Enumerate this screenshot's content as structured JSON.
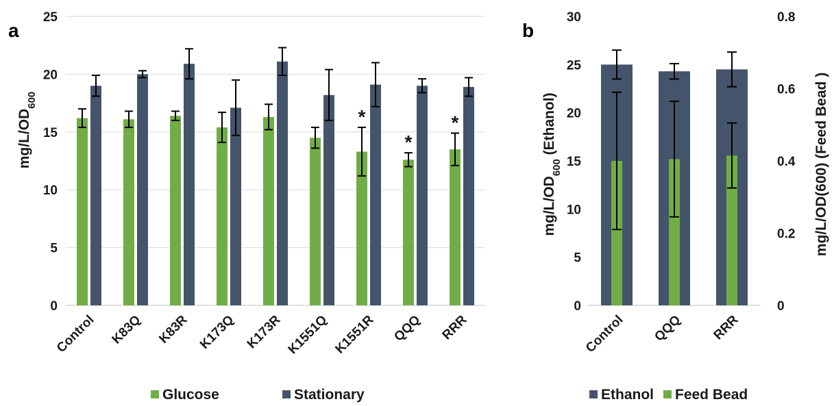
{
  "colors": {
    "glucose": "#70ad47",
    "stationary": "#44546a",
    "ethanol": "#44546a",
    "feed_bead": "#70ad47",
    "axis": "#d9d9d9",
    "error": "#000000"
  },
  "chart_data": [
    {
      "panel_label": "a",
      "type": "bar",
      "categories": [
        "Control",
        "K83Q",
        "K83R",
        "K173Q",
        "K173R",
        "K1551Q",
        "K1551R",
        "QQQ",
        "RRR"
      ],
      "series": [
        {
          "name": "Glucose",
          "values": [
            16.2,
            16.1,
            16.4,
            15.4,
            16.3,
            14.5,
            13.3,
            12.6,
            13.5
          ],
          "errors": [
            0.8,
            0.7,
            0.4,
            1.3,
            1.1,
            0.9,
            2.1,
            0.6,
            1.4
          ]
        },
        {
          "name": "Stationary",
          "values": [
            19.0,
            20.0,
            20.9,
            17.1,
            21.1,
            18.2,
            19.1,
            19.0,
            18.9
          ],
          "errors": [
            0.9,
            0.3,
            1.3,
            2.4,
            1.2,
            2.2,
            1.9,
            0.6,
            0.8
          ]
        }
      ],
      "significance_marks": [
        {
          "category": "K1551R",
          "label": "*"
        },
        {
          "category": "QQQ",
          "label": "*"
        },
        {
          "category": "RRR",
          "label": "*"
        }
      ],
      "ylim": [
        0,
        25
      ],
      "yticks": [
        "0",
        "5",
        "10",
        "15",
        "20",
        "25"
      ],
      "ylabel": {
        "main": "mg/L/OD",
        "sub": "600"
      },
      "legend_position": "bottom"
    },
    {
      "panel_label": "b",
      "type": "bar",
      "categories": [
        "Control",
        "QQQ",
        "RRR"
      ],
      "series": [
        {
          "name": "Ethanol",
          "axis": "left",
          "values": [
            25.0,
            24.3,
            24.5
          ],
          "errors": [
            1.5,
            0.8,
            1.8
          ]
        },
        {
          "name": "Feed Bead",
          "axis": "right",
          "values": [
            0.4,
            0.405,
            0.415
          ],
          "errors": [
            0.19,
            0.16,
            0.09
          ]
        }
      ],
      "ylim_left": [
        0,
        30
      ],
      "yticks_left": [
        "0",
        "5",
        "10",
        "15",
        "20",
        "25",
        "30"
      ],
      "ylim_right": [
        0,
        0.8
      ],
      "yticks_right": [
        "0",
        "0.2",
        "0.4",
        "0.6",
        "0.8"
      ],
      "ylabel_left": {
        "main": "mg/L/OD",
        "sub": "600",
        "suffix": " (Ethanol)"
      },
      "ylabel_right": "mg/L/OD(600) (Feed Bead )",
      "legend_position": "bottom"
    }
  ]
}
